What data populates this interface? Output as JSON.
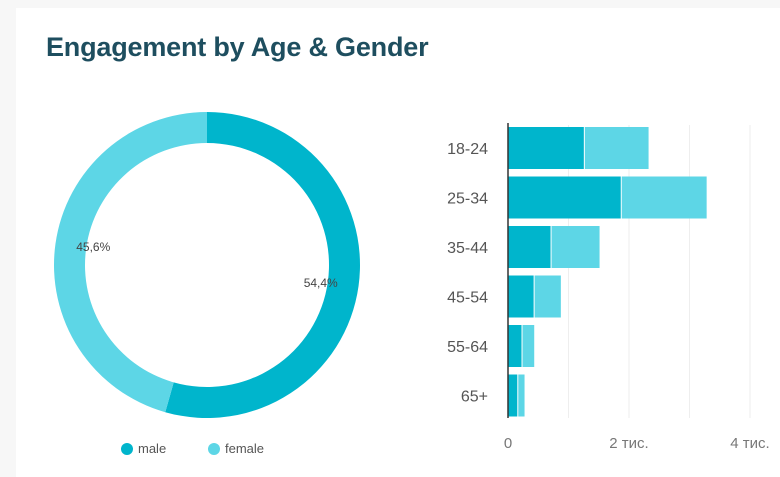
{
  "title": "Engagement by Age & Gender",
  "colors": {
    "male": "#00b5cc",
    "female": "#5dd6e6",
    "title": "#1e4e5f",
    "label": "#555555",
    "grid": "#eeeeee",
    "axis": "#333333"
  },
  "chart_data": [
    {
      "type": "pie",
      "style": "donut",
      "slices": [
        {
          "name": "male",
          "value": 54.4,
          "label": "54,4%"
        },
        {
          "name": "female",
          "value": 45.6,
          "label": "45,6%"
        }
      ],
      "legend": {
        "position": "bottom",
        "items": [
          "male",
          "female"
        ]
      }
    },
    {
      "type": "bar",
      "orientation": "horizontal",
      "stacked": true,
      "categories": [
        "18-24",
        "25-34",
        "35-44",
        "45-54",
        "55-64",
        "65+"
      ],
      "series": [
        {
          "name": "male",
          "values": [
            1270,
            1880,
            720,
            440,
            240,
            170
          ]
        },
        {
          "name": "female",
          "values": [
            1070,
            1420,
            810,
            450,
            210,
            120
          ]
        }
      ],
      "xlim": [
        0,
        4000
      ],
      "xticks": [
        {
          "value": 0,
          "label": "0"
        },
        {
          "value": 2000,
          "label": "2 тис."
        },
        {
          "value": 4000,
          "label": "4 тис."
        }
      ],
      "grid": true
    }
  ]
}
